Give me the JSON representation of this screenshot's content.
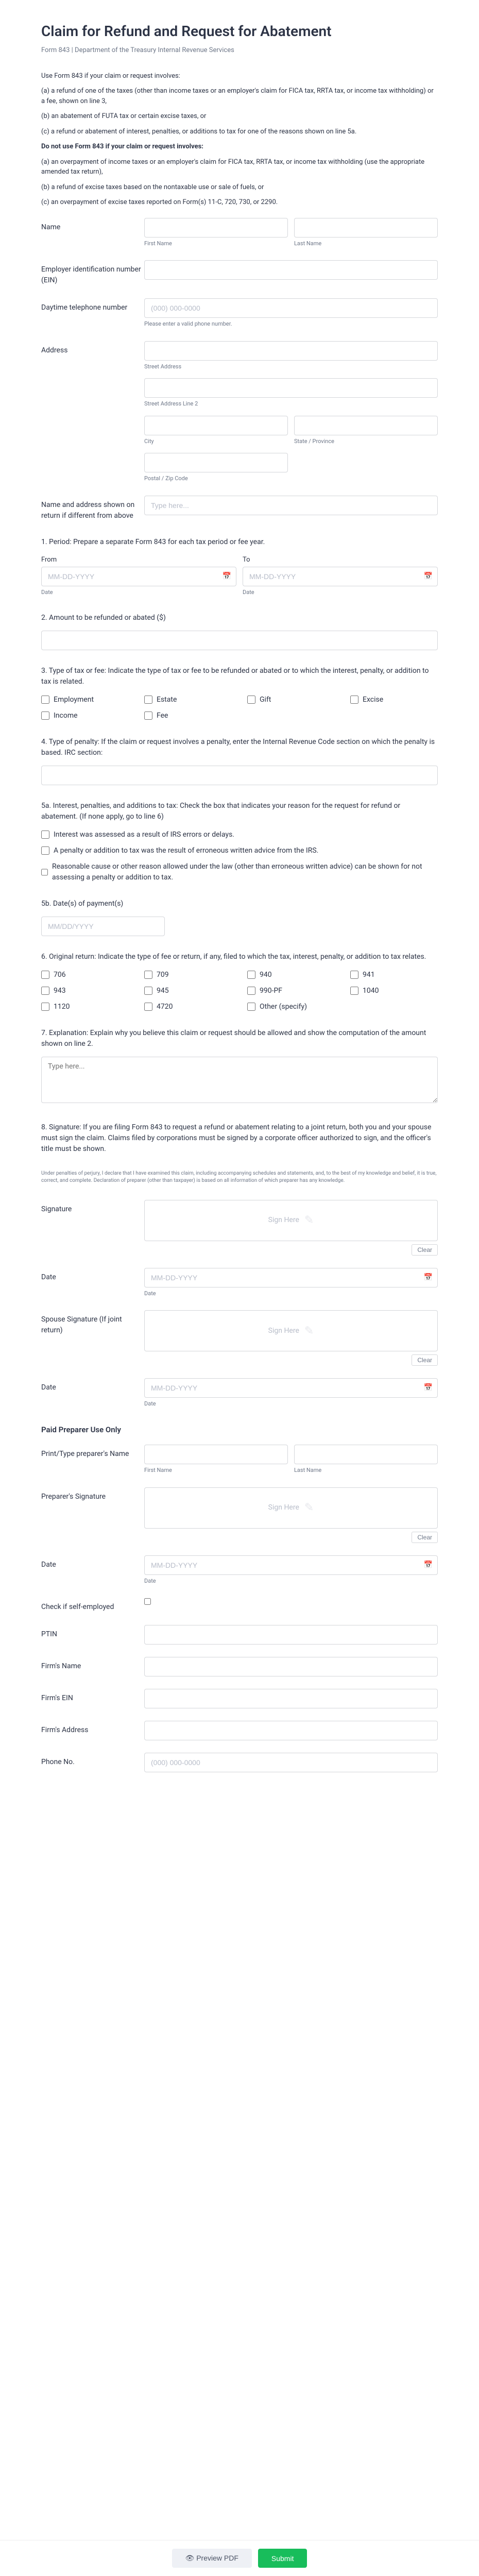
{
  "header": {
    "title": "Claim for Refund and Request for Abatement",
    "subtitle": "Form 843 | Department of the Treasury Internal Revenue Services"
  },
  "intro": {
    "lead": "Use Form 843 if your claim or request involves:",
    "a": "(a) a refund of one of the taxes (other than income taxes or an employer's claim for FICA tax, RRTA tax, or income tax withholding) or a fee, shown on line 3,",
    "b": "(b) an abatement of FUTA tax or certain excise taxes, or",
    "c": "(c) a refund or abatement of interest, penalties, or additions to tax for one of the reasons shown on line 5a.",
    "donot": "Do not use Form 843 if your claim or request involves:",
    "x1": "(a) an overpayment of income taxes or an employer's claim for FICA tax, RRTA tax, or income tax withholding (use the appropriate amended tax return),",
    "x2": "(b) a refund of excise taxes based on the nontaxable use or sale of fuels, or",
    "x3": "(c) an overpayment of excise taxes reported on Form(s) 11-C, 720, 730, or 2290."
  },
  "labels": {
    "name": "Name",
    "first": "First Name",
    "last": "Last Name",
    "ein": "Employer identification number (EIN)",
    "phone": "Daytime telephone number",
    "phone_ph": "(000) 000-0000",
    "phone_hint": "Please enter a valid phone number.",
    "address": "Address",
    "street": "Street Address",
    "street2": "Street Address Line 2",
    "city": "City",
    "state": "State / Province",
    "zip": "Postal / Zip Code",
    "nameaddr": "Name and address shown on return if different from above",
    "nameaddr_ph": "Type here..."
  },
  "q1": {
    "text": "1. Period: Prepare a separate Form 843 for each tax period or fee year.",
    "from": "From",
    "to": "To",
    "date_ph": "MM-DD-YYYY",
    "date_hint": "Date"
  },
  "q2": {
    "text": "2. Amount to be refunded or abated ($)"
  },
  "q3": {
    "text": "3. Type of tax or fee: Indicate the type of tax or fee to be refunded or abated or to which the interest, penalty, or addition to tax is related.",
    "opts": [
      "Employment",
      "Estate",
      "Gift",
      "Excise",
      "Income",
      "Fee"
    ]
  },
  "q4": {
    "text": "4. Type of penalty: If the claim or request involves a penalty, enter the Internal Revenue Code section on which the penalty is based. IRC section:"
  },
  "q5a": {
    "text": "5a. Interest, penalties, and additions to tax: Check the box that indicates your reason for the request for refund or abatement. (If none apply, go to line 6)",
    "opts": [
      "Interest was assessed as a result of IRS errors or delays.",
      "A penalty or addition to tax was the result of erroneous written advice from the IRS.",
      "Reasonable cause or other reason allowed under the law (other than erroneous written advice) can be shown for not assessing a penalty or addition to tax."
    ]
  },
  "q5b": {
    "text": "5b. Date(s) of payment(s)",
    "ph": "MM/DD/YYYY"
  },
  "q6": {
    "text": "6. Original return: Indicate the type of fee or return, if any, filed to which the tax, interest, penalty, or addition to tax relates.",
    "opts": [
      "706",
      "709",
      "940",
      "941",
      "943",
      "945",
      "990-PF",
      "1040",
      "1120",
      "4720",
      "Other (specify)"
    ]
  },
  "q7": {
    "text": "7. Explanation: Explain why you believe this claim or request should be allowed and show the computation of the amount shown on line 2.",
    "ph": "Type here..."
  },
  "q8": {
    "text": "8. Signature: If you are filing Form 843 to request a refund or abatement relating to a joint return, both you and your spouse must sign the claim. Claims filed by corporations must be signed by a corporate officer authorized to sign, and the officer's title must be shown."
  },
  "fine": "Under penalties of perjury, I declare that I have examined this claim, including accompanying schedules and statements, and, to the best of my knowledge and belief, it is true, correct, and complete. Declaration of preparer (other than taxpayer) is based on all information of which preparer has any knowledge.",
  "sig": {
    "signature": "Signature",
    "signhere": "Sign Here",
    "clear": "Clear",
    "date": "Date",
    "date_hint": "Date",
    "date_ph": "MM-DD-YYYY",
    "spouse": "Spouse Signature (If joint return)"
  },
  "prep": {
    "hdr": "Paid Preparer Use Only",
    "name": "Print/Type preparer's Name",
    "first": "First Name",
    "last": "Last Name",
    "sig": "Preparer's Signature",
    "date": "Date",
    "self": "Check if self-employed",
    "ptin": "PTIN",
    "firmname": "Firm's Name",
    "firmein": "Firm's EIN",
    "firmaddr": "Firm's Address",
    "phone": "Phone No.",
    "phone_ph": "(000) 000-0000"
  },
  "footer": {
    "preview": "Preview PDF",
    "submit": "Submit"
  }
}
